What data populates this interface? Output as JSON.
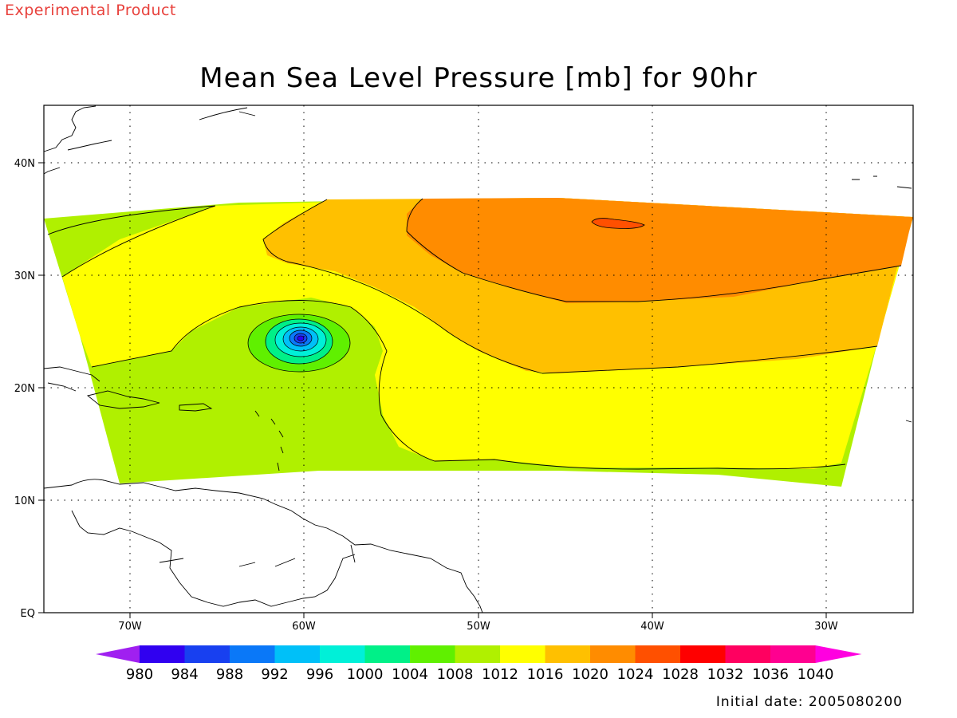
{
  "header": {
    "note": "Experimental Product",
    "title": "Mean Sea Level Pressure [mb] for 90hr"
  },
  "map": {
    "lat_labels": [
      "EQ",
      "10N",
      "20N",
      "30N",
      "40N"
    ],
    "lon_labels": [
      "70W",
      "60W",
      "50W",
      "40W",
      "30W"
    ],
    "lon_range": [
      -75,
      -25
    ],
    "lat_range": [
      0,
      45
    ],
    "grid": "dotted",
    "low_center": {
      "lon": -60,
      "lat": 24.5
    }
  },
  "colorbar": {
    "labels": [
      "980",
      "984",
      "988",
      "992",
      "996",
      "1000",
      "1004",
      "1008",
      "1012",
      "1016",
      "1020",
      "1024",
      "1028",
      "1032",
      "1036",
      "1040"
    ],
    "colors": [
      "#a020f0",
      "#3000f0",
      "#1840f0",
      "#0a78f8",
      "#00c0f8",
      "#00f0d8",
      "#00f088",
      "#60f000",
      "#b0f000",
      "#ffff00",
      "#ffc000",
      "#ff8c00",
      "#ff5000",
      "#ff0000",
      "#ff0060",
      "#ff0090",
      "#ff00e0"
    ]
  },
  "footer": {
    "initial_date": "Initial date: 2005080200"
  }
}
